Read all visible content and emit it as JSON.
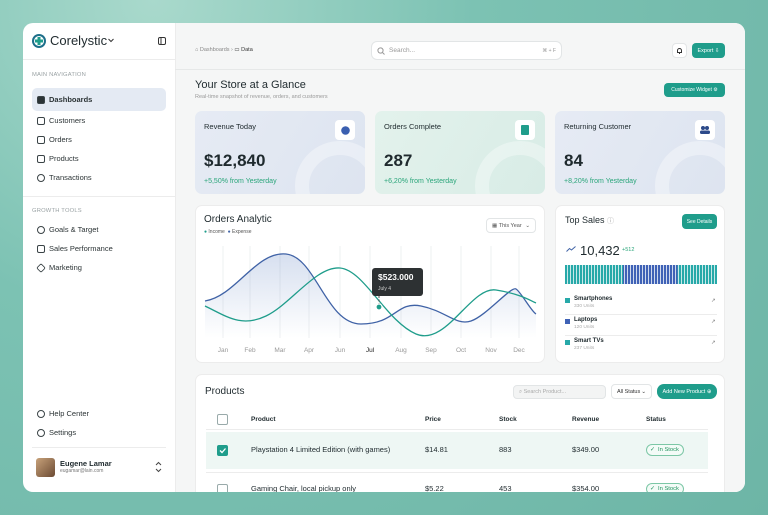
{
  "sidebar": {
    "brand": "Corelystic",
    "sections": [
      {
        "title": "MAIN NAVIGATION",
        "items": [
          "Dashboards",
          "Customers",
          "Orders",
          "Products",
          "Transactions"
        ]
      },
      {
        "title": "GROWTH TOOLS",
        "items": [
          "Goals & Target",
          "Sales Performance",
          "Marketing"
        ]
      }
    ],
    "footer": [
      "Help Center",
      "Settings"
    ],
    "user": {
      "name": "Eugene Lamar",
      "email": "eugamar@lain.com"
    }
  },
  "topbar": {
    "breadcrumbs": [
      "Dashboards",
      "Data"
    ],
    "search": "Search...",
    "shortcut": "⌘ + F",
    "export": "Export"
  },
  "header": {
    "title": "Your Store at a Glance",
    "subtitle": "Real-time snapshot of revenue, orders, and customers",
    "button": "Customize Widget"
  },
  "cards": [
    {
      "label": "Revenue Today",
      "value": "$12,840",
      "change": "+5,50% from Yesterday"
    },
    {
      "label": "Orders Complete",
      "value": "287",
      "change": "+6,20% from Yesterday"
    },
    {
      "label": "Returning Customer",
      "value": "84",
      "change": "+8,20% from Yesterday"
    }
  ],
  "orders": {
    "title": "Orders Analytic",
    "legend": [
      "Income",
      "Expense"
    ],
    "period": "This Year",
    "months": [
      "Jan",
      "Feb",
      "Mar",
      "Apr",
      "Jun",
      "Jul",
      "Aug",
      "Sep",
      "Oct",
      "Nov",
      "Dec"
    ],
    "tooltip": {
      "value": "$523.000",
      "date": "July 4"
    }
  },
  "top_sales": {
    "title": "Top Sales",
    "button": "See Details",
    "total": "10,432",
    "delta": "+512",
    "items": [
      {
        "name": "Smartphones",
        "units": "330 Units"
      },
      {
        "name": "Laptops",
        "units": "120 Units"
      },
      {
        "name": "Smart TVs",
        "units": "237 Units"
      }
    ]
  },
  "products": {
    "title": "Products",
    "search": "Search Product...",
    "filter": "All Status",
    "button": "Add New Product",
    "columns": [
      "Product",
      "Price",
      "Stock",
      "Revenue",
      "Status"
    ],
    "rows": [
      [
        "Playstation 4 Limited Edition (with games)",
        "$14.81",
        883,
        "$349.00",
        "In Stock"
      ],
      [
        "Gaming Chair, local pickup only",
        "$5.22",
        453,
        "$354.00",
        "In Stock"
      ]
    ]
  }
}
